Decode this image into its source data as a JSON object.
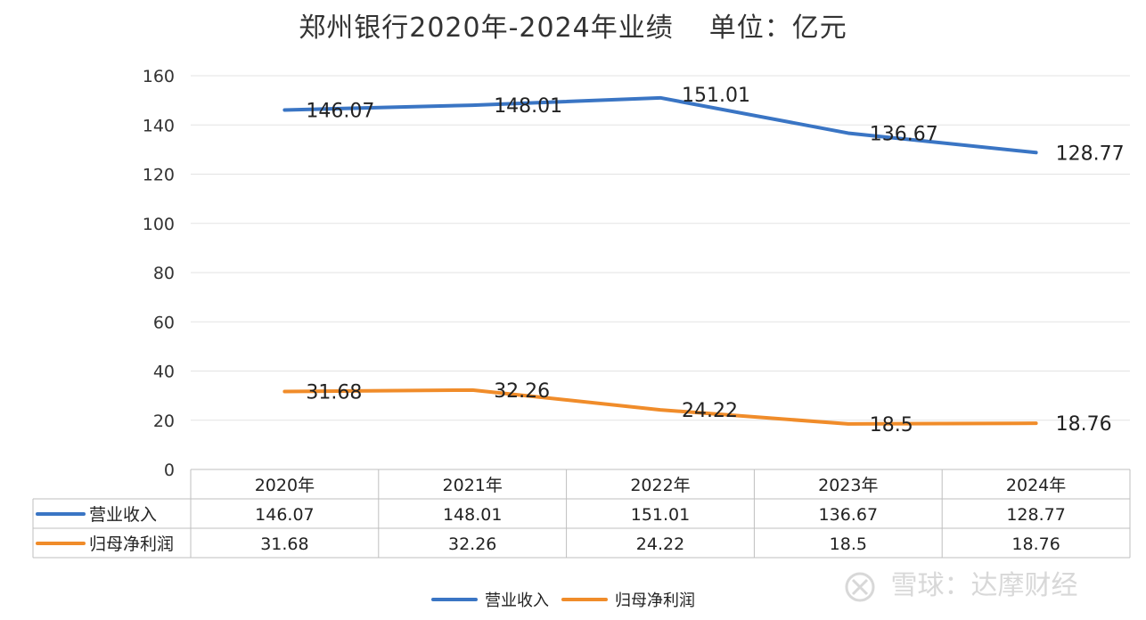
{
  "chart_data": {
    "type": "line",
    "title": "郑州银行2020年-2024年业绩",
    "unit_label": "单位：亿元",
    "categories": [
      "2020年",
      "2021年",
      "2022年",
      "2023年",
      "2024年"
    ],
    "ylim": [
      0,
      160
    ],
    "yticks": [
      0,
      20,
      40,
      60,
      80,
      100,
      120,
      140,
      160
    ],
    "grid": true,
    "legend_position": "bottom-center",
    "data_table": true,
    "series": [
      {
        "name": "营业收入",
        "color": "#3a75c4",
        "values": [
          146.07,
          148.01,
          151.01,
          136.67,
          128.77
        ],
        "labels": [
          "146.07",
          "148.01",
          "151.01",
          "136.67",
          "128.77"
        ]
      },
      {
        "name": "归母净利润",
        "color": "#f08c2a",
        "values": [
          31.68,
          32.26,
          24.22,
          18.5,
          18.76
        ],
        "labels": [
          "31.68",
          "32.26",
          "24.22",
          "18.5",
          "18.76"
        ]
      }
    ]
  },
  "watermark": {
    "text": "雪球：达摩财经",
    "logo_icon": "snowball-logo-icon"
  }
}
